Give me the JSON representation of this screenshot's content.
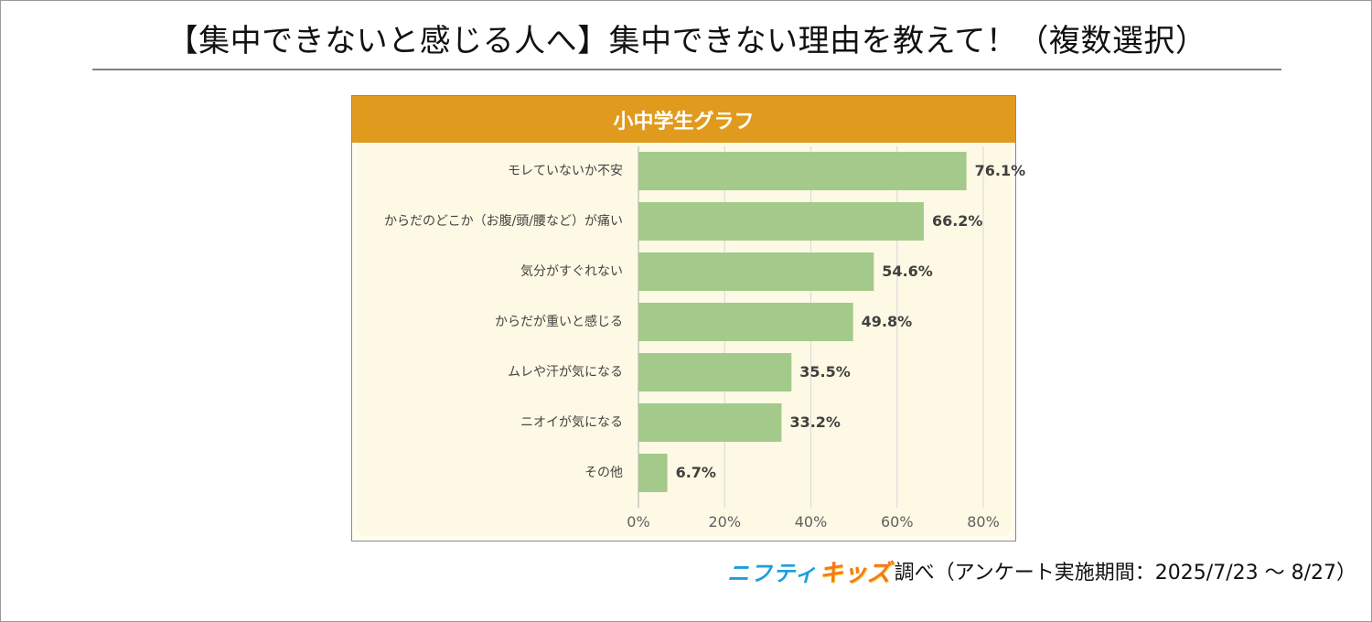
{
  "page": {
    "title": "【集中できないと感じる人へ】集中できない理由を教えて！（複数選択）"
  },
  "panel": {
    "header": "小中学生グラフ"
  },
  "chart_data": {
    "type": "bar",
    "orientation": "horizontal",
    "title": "小中学生グラフ",
    "categories": [
      "モレていないか不安",
      "からだのどこか（お腹/頭/腰など）が痛い",
      "気分がすぐれない",
      "からだが重いと感じる",
      "ムレや汗が気になる",
      "ニオイが気になる",
      "その他"
    ],
    "values": [
      76.1,
      66.2,
      54.6,
      49.8,
      35.5,
      33.2,
      6.7
    ],
    "value_labels": [
      "76.1%",
      "66.2%",
      "54.6%",
      "49.8%",
      "35.5%",
      "33.2%",
      "6.7%"
    ],
    "x_ticks": [
      "0%",
      "20%",
      "40%",
      "60%",
      "80%"
    ],
    "xlim": [
      0,
      80
    ],
    "grid": true,
    "xlabel": "",
    "ylabel": "",
    "bar_color": "#a3ca8a"
  },
  "footer": {
    "logo_part1": "ニフティ",
    "logo_part2": "キッズ",
    "text": "調べ（アンケート実施期間：2025/7/23 ～ 8/27）"
  }
}
